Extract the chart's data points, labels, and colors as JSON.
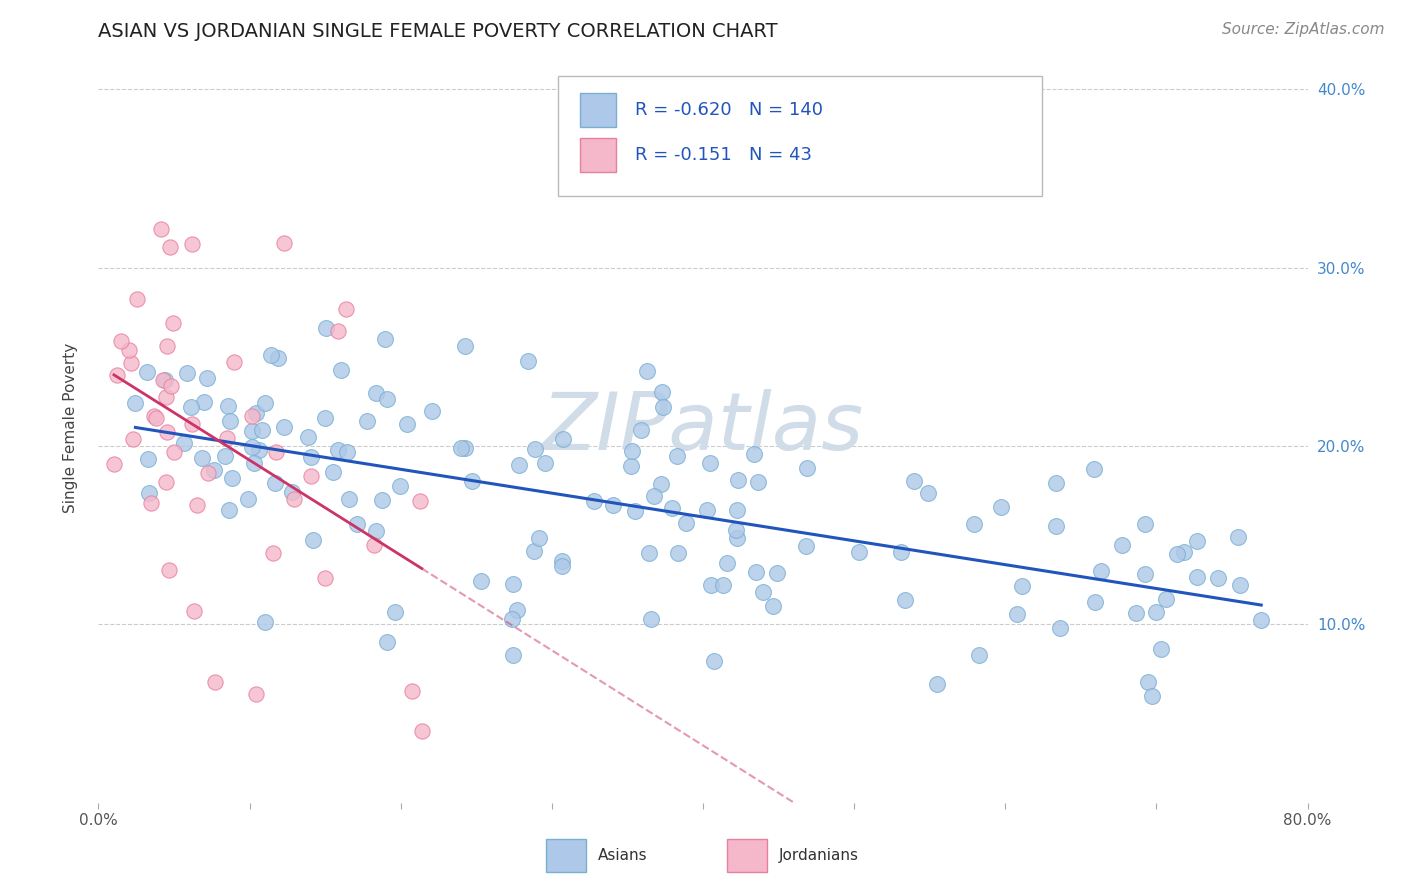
{
  "title": "ASIAN VS JORDANIAN SINGLE FEMALE POVERTY CORRELATION CHART",
  "source": "Source: ZipAtlas.com",
  "ylabel": "Single Female Poverty",
  "xlim": [
    0.0,
    0.8
  ],
  "ylim": [
    0.0,
    0.42
  ],
  "xtick_positions": [
    0.0,
    0.1,
    0.2,
    0.3,
    0.4,
    0.5,
    0.6,
    0.7,
    0.8
  ],
  "xticklabels": [
    "0.0%",
    "",
    "",
    "",
    "",
    "",
    "",
    "",
    "80.0%"
  ],
  "ytick_positions": [
    0.1,
    0.2,
    0.3,
    0.4
  ],
  "ytick_labels": [
    "10.0%",
    "20.0%",
    "30.0%",
    "40.0%"
  ],
  "asian_color": "#adc8e8",
  "asian_edge": "#7aafd4",
  "jordan_color": "#f5b8ca",
  "jordan_edge": "#e87fa0",
  "regression_asian_color": "#2255bb",
  "regression_jordan_color": "#cc3366",
  "watermark_color": "#d0dce8",
  "legend_R_asian": "-0.620",
  "legend_N_asian": "140",
  "legend_R_jordan": "-0.151",
  "legend_N_jordan": "43",
  "title_fontsize": 14,
  "source_fontsize": 11,
  "label_fontsize": 11,
  "tick_fontsize": 11
}
